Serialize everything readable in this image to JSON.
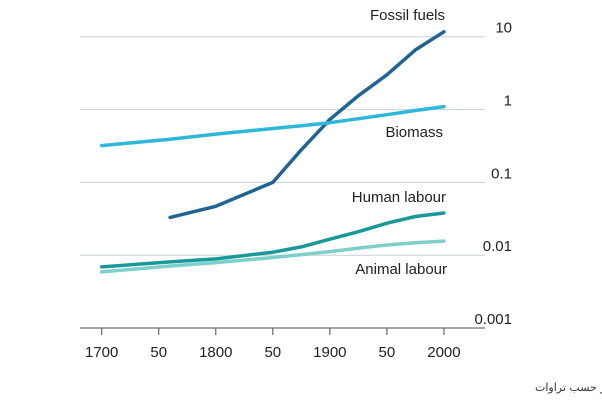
{
  "chart_data": {
    "type": "line",
    "caption": "میزان مصرف جهانی انرژی بر حسب تراوات",
    "x": [
      1700,
      1760,
      1800,
      1850,
      1875,
      1900,
      1925,
      1950,
      1975,
      2000
    ],
    "series": [
      {
        "name": "Fossil fuels",
        "color": "#1d6596",
        "values": [
          null,
          0.033,
          0.047,
          0.1,
          0.28,
          0.73,
          1.55,
          3.0,
          6.6,
          11.7
        ]
      },
      {
        "name": "Biomass",
        "color": "#2db8da",
        "values": [
          0.32,
          0.39,
          0.46,
          0.55,
          0.6,
          0.66,
          0.75,
          0.85,
          0.97,
          1.1
        ]
      },
      {
        "name": "Human labour",
        "color": "#17999a",
        "values": [
          0.0069,
          0.0081,
          0.0089,
          0.011,
          0.013,
          0.0166,
          0.021,
          0.0275,
          0.034,
          0.038
        ]
      },
      {
        "name": "Animal labour",
        "color": "#7ccfca",
        "values": [
          0.0059,
          0.0071,
          0.0079,
          0.0093,
          0.0102,
          0.0112,
          0.0125,
          0.0138,
          0.0148,
          0.0156
        ]
      }
    ],
    "xlim": [
      1681,
      2036
    ],
    "xticks": [
      1700,
      {
        "value": 1750,
        "label": "50"
      },
      1800,
      {
        "value": 1850,
        "label": "50"
      },
      1900,
      {
        "value": 1950,
        "label": "50"
      },
      2000
    ],
    "ylim": [
      0.001,
      12.5
    ],
    "yticks": [
      10,
      1,
      0.1,
      0.01,
      0.001
    ],
    "ylog": true,
    "grid": true
  }
}
